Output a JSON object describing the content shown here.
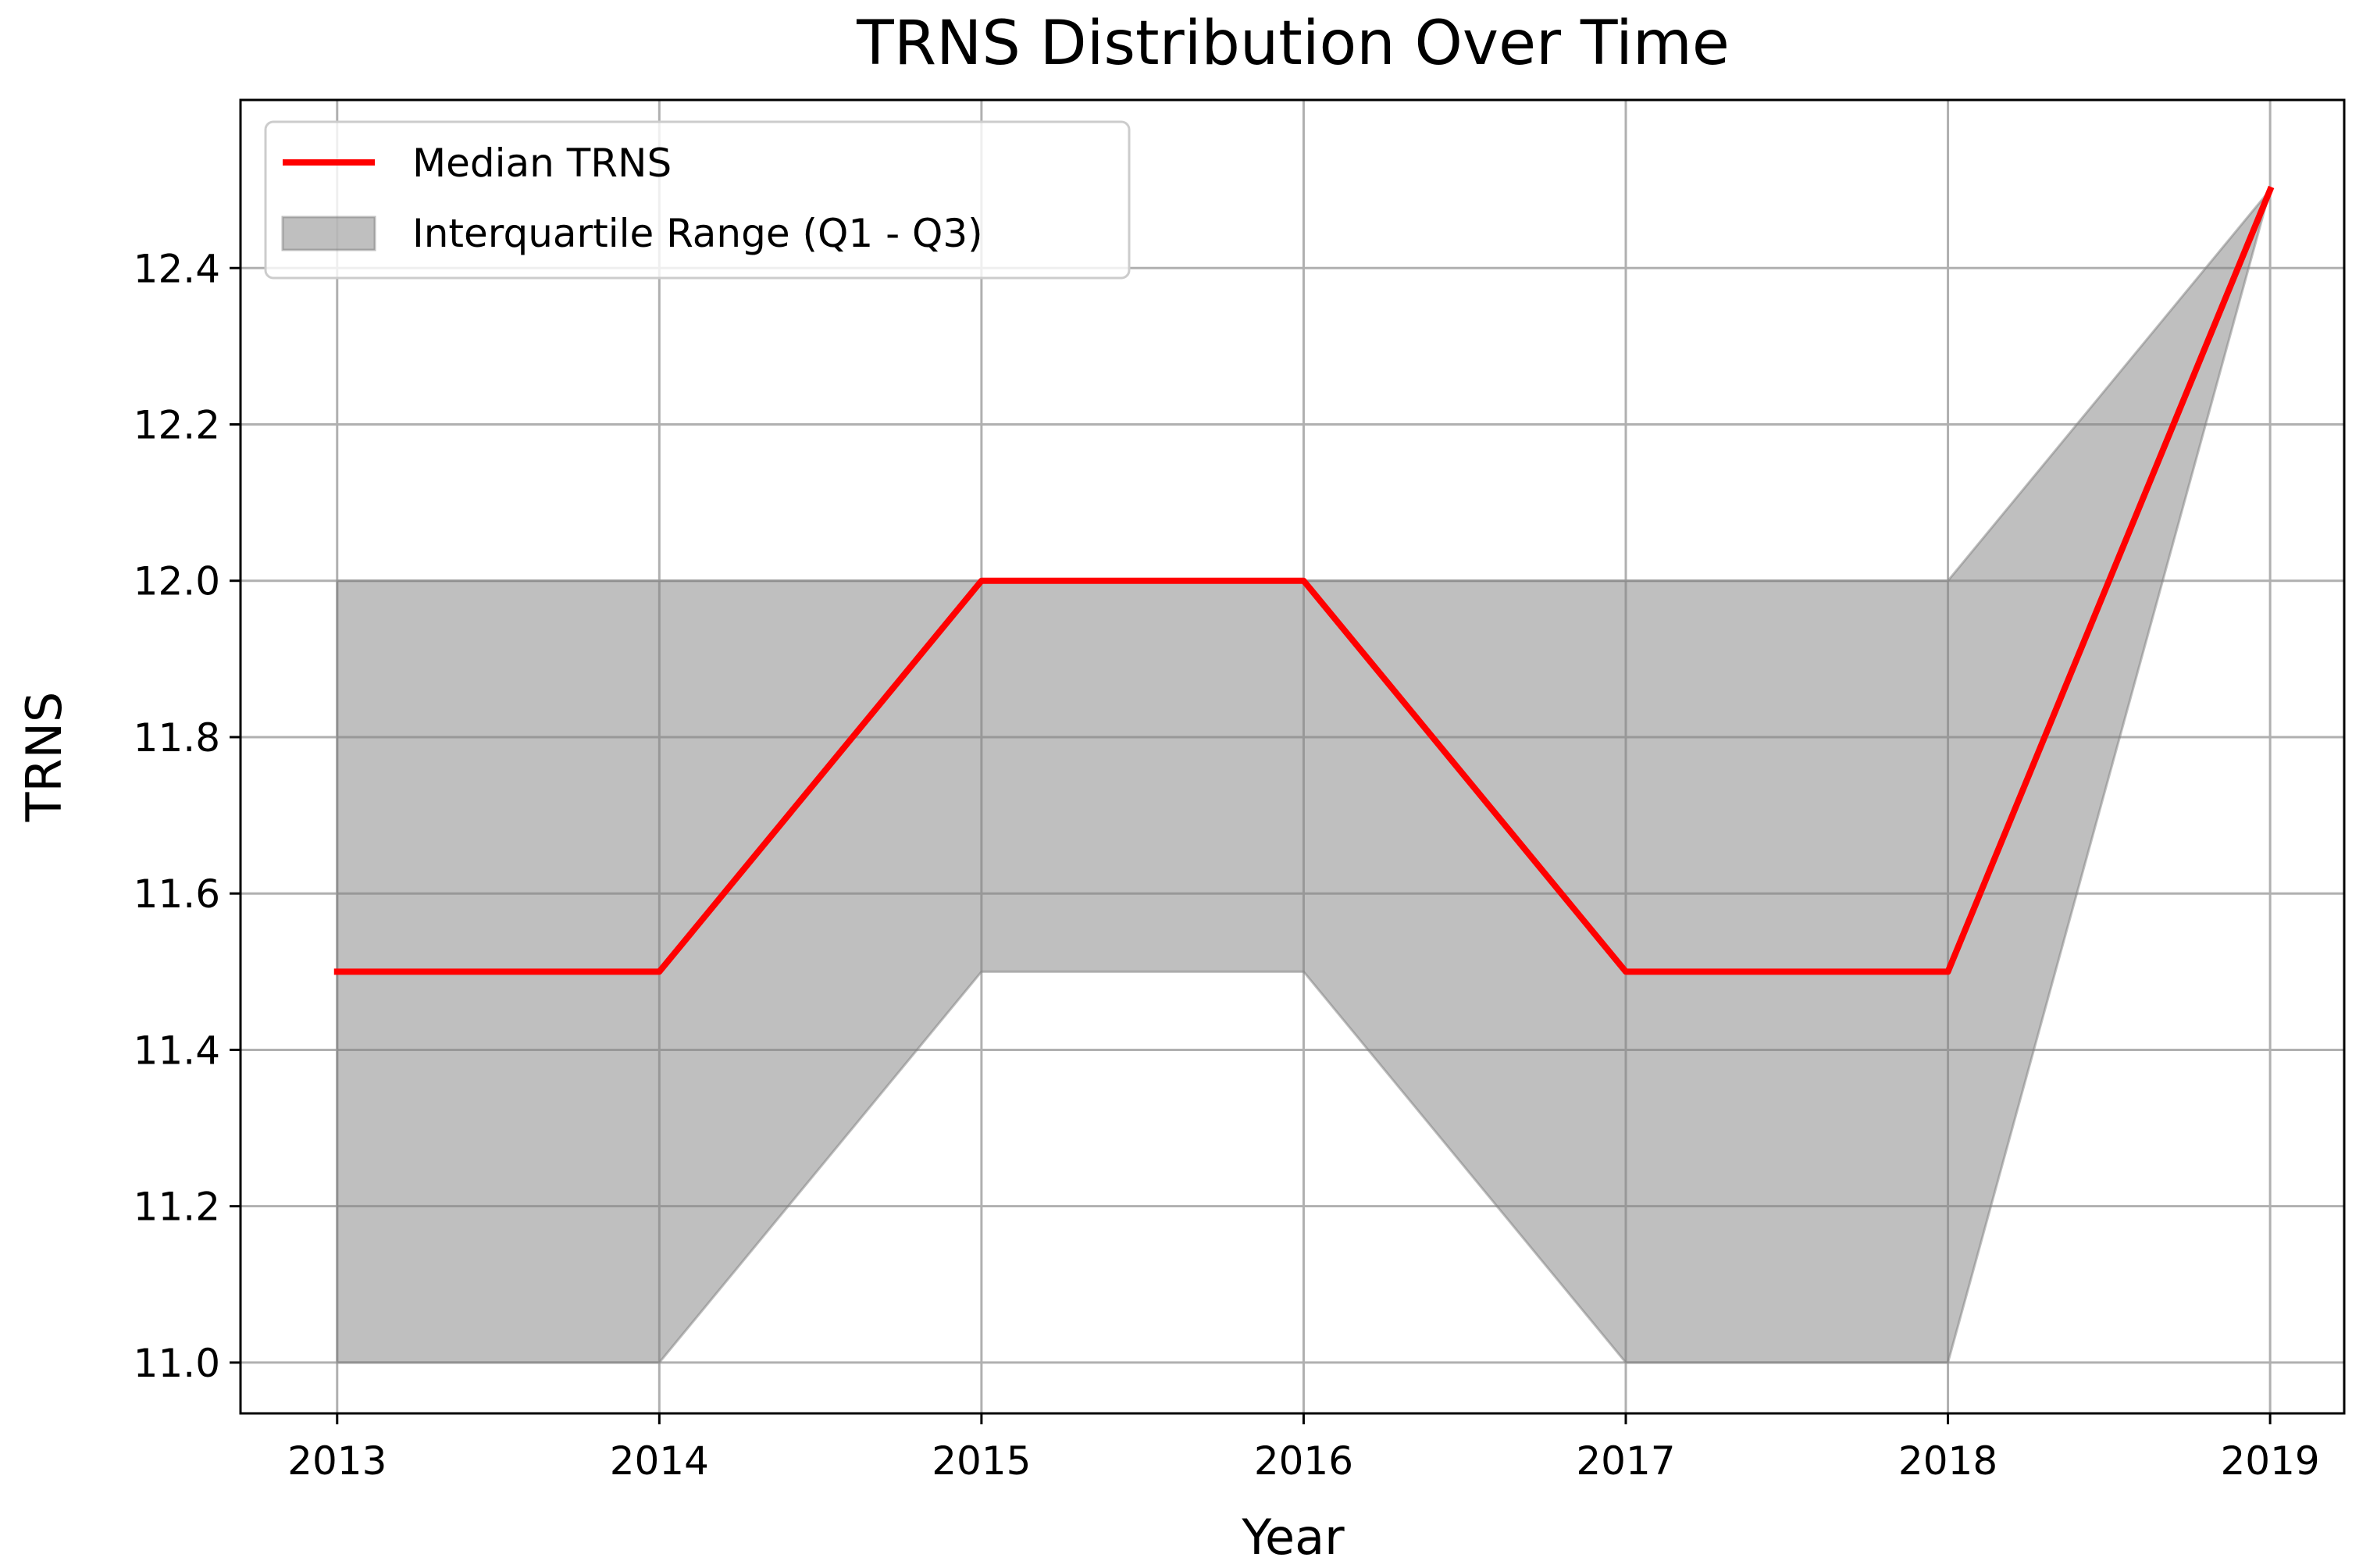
{
  "chart_data": {
    "type": "area",
    "title": "TRNS Distribution Over Time",
    "xlabel": "Year",
    "ylabel": "TRNS",
    "x": [
      2013,
      2014,
      2015,
      2016,
      2017,
      2018,
      2019
    ],
    "xlim": [
      2012.7,
      2019.23
    ],
    "ylim": [
      10.935,
      12.615
    ],
    "yticks": [
      "11.0",
      "11.2",
      "11.4",
      "11.6",
      "11.8",
      "12.0",
      "12.2",
      "12.4"
    ],
    "grid": true,
    "legend_position": "upper-left",
    "series": [
      {
        "name": "Median TRNS",
        "kind": "line",
        "color": "#ff0000",
        "values": [
          11.5,
          11.5,
          12.0,
          12.0,
          11.5,
          11.5,
          12.5
        ]
      },
      {
        "name": "Interquartile Range (Q1 - Q3)",
        "kind": "band",
        "color": "#808080",
        "opacity": 0.5,
        "lower": [
          11.0,
          11.0,
          11.5,
          11.5,
          11.0,
          11.0,
          12.5
        ],
        "upper": [
          12.0,
          12.0,
          12.0,
          12.0,
          12.0,
          12.0,
          12.5
        ]
      }
    ]
  }
}
